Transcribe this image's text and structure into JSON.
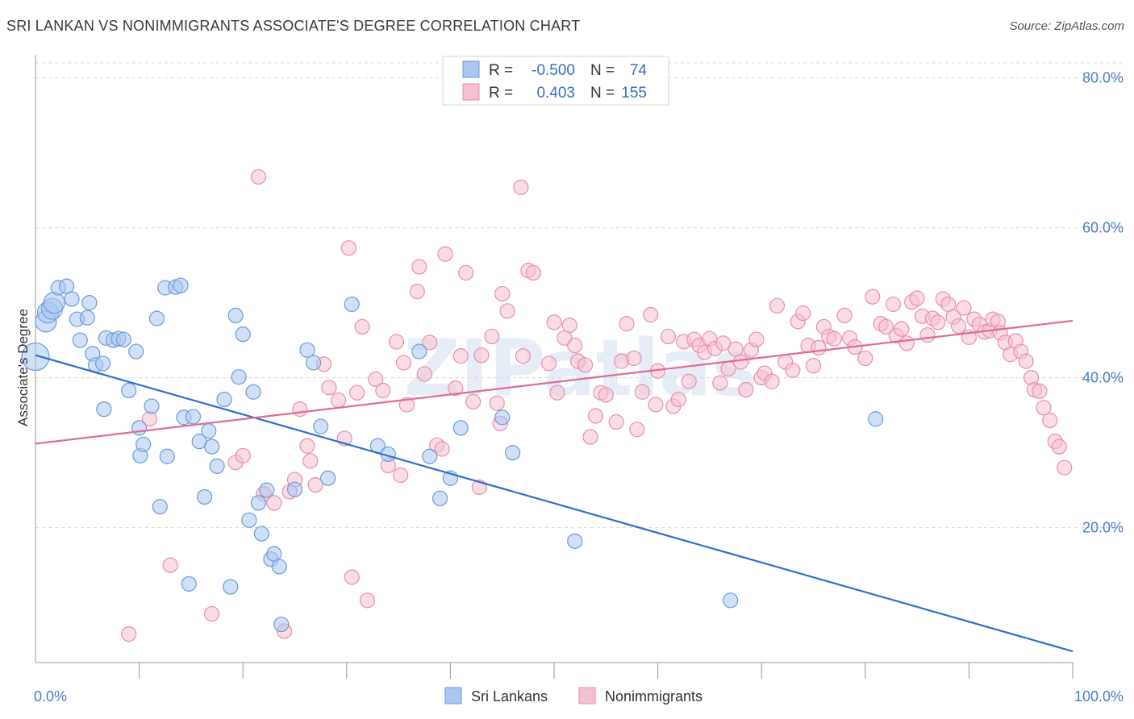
{
  "title": "SRI LANKAN VS NONIMMIGRANTS ASSOCIATE'S DEGREE CORRELATION CHART",
  "source": "Source: ZipAtlas.com",
  "watermark": "ZIPatlas",
  "colors": {
    "blue_fill": "#a9c7ef",
    "blue_stroke": "#6d9bdc",
    "blue_line": "#2f6fd0",
    "pink_fill": "#f6bfd2",
    "pink_stroke": "#e88fae",
    "pink_line": "#e06b97",
    "grid": "#d8d8d8",
    "axis_label": "#4a7cc4"
  },
  "legend": {
    "rows": [
      {
        "r_label": "R =",
        "r_value": "-0.500",
        "n_label": "N =",
        "n_value": "74",
        "series": "blue"
      },
      {
        "r_label": "R =",
        "r_value": "0.403",
        "n_label": "N =",
        "n_value": "155",
        "series": "pink"
      }
    ]
  },
  "bottom_legend": [
    {
      "label": "Sri Lankans",
      "series": "blue"
    },
    {
      "label": "Nonimmigrants",
      "series": "pink"
    }
  ],
  "chart_data": {
    "type": "scatter",
    "ylabel": "Associate's Degree",
    "xlim": [
      0,
      100
    ],
    "ylim": [
      2,
      82
    ],
    "y_ticks": [
      {
        "v": 20,
        "label": "20.0%"
      },
      {
        "v": 40,
        "label": "40.0%"
      },
      {
        "v": 60,
        "label": "60.0%"
      },
      {
        "v": 80,
        "label": "80.0%"
      }
    ],
    "x_ticks": [
      {
        "v": 0,
        "label": "0.0%"
      },
      {
        "v": 100,
        "label": "100.0%"
      }
    ],
    "grid": true,
    "legend_position": "top-center",
    "series": [
      {
        "name": "Sri Lankans",
        "color": "blue",
        "r": -0.5,
        "n": 74,
        "trend": {
          "x0": 0,
          "y0": 43,
          "x1": 100,
          "y1": 3.5
        },
        "points": [
          [
            0,
            42.8
          ],
          [
            1,
            47.5
          ],
          [
            1.2,
            48.7
          ],
          [
            1.6,
            49.2
          ],
          [
            1.8,
            50
          ],
          [
            2.2,
            52
          ],
          [
            3,
            52.2
          ],
          [
            3.5,
            50.5
          ],
          [
            4,
            47.8
          ],
          [
            4.3,
            45
          ],
          [
            5,
            48
          ],
          [
            5.2,
            50
          ],
          [
            5.5,
            43.2
          ],
          [
            5.8,
            41.7
          ],
          [
            6.5,
            41.9
          ],
          [
            6.6,
            35.8
          ],
          [
            6.8,
            45.3
          ],
          [
            7.5,
            45
          ],
          [
            8,
            45.2
          ],
          [
            8.5,
            45.1
          ],
          [
            9,
            38.3
          ],
          [
            9.7,
            43.5
          ],
          [
            10,
            33.3
          ],
          [
            10.1,
            29.6
          ],
          [
            10.4,
            31.1
          ],
          [
            11.2,
            36.2
          ],
          [
            11.7,
            47.9
          ],
          [
            12,
            22.8
          ],
          [
            12.5,
            52
          ],
          [
            12.7,
            29.5
          ],
          [
            13.5,
            52.1
          ],
          [
            14,
            52.3
          ],
          [
            14.3,
            34.7
          ],
          [
            14.8,
            12.5
          ],
          [
            15.2,
            34.8
          ],
          [
            15.8,
            31.5
          ],
          [
            16.3,
            24.1
          ],
          [
            16.7,
            32.9
          ],
          [
            17,
            30.8
          ],
          [
            17.5,
            28.2
          ],
          [
            18.2,
            37.1
          ],
          [
            18.8,
            12.1
          ],
          [
            19.3,
            48.3
          ],
          [
            19.6,
            40.1
          ],
          [
            20,
            45.8
          ],
          [
            20.6,
            21
          ],
          [
            21,
            38.1
          ],
          [
            21.5,
            23.3
          ],
          [
            21.8,
            19.2
          ],
          [
            22.3,
            25
          ],
          [
            22.7,
            15.8
          ],
          [
            23,
            16.5
          ],
          [
            23.5,
            14.8
          ],
          [
            23.7,
            7.1
          ],
          [
            25,
            25.1
          ],
          [
            26.2,
            43.7
          ],
          [
            26.8,
            42
          ],
          [
            27.5,
            33.5
          ],
          [
            28.2,
            26.6
          ],
          [
            30.5,
            49.8
          ],
          [
            33,
            30.9
          ],
          [
            34,
            29.8
          ],
          [
            37,
            43.5
          ],
          [
            38,
            29.5
          ],
          [
            39,
            23.9
          ],
          [
            40,
            26.6
          ],
          [
            41,
            33.3
          ],
          [
            45,
            34.7
          ],
          [
            46,
            30
          ],
          [
            52,
            18.2
          ],
          [
            67,
            10.3
          ],
          [
            81,
            34.5
          ]
        ]
      },
      {
        "name": "Nonimmigrants",
        "color": "pink",
        "r": 0.403,
        "n": 155,
        "trend": {
          "x0": 0,
          "y0": 31.2,
          "x1": 100,
          "y1": 47.6
        },
        "points": [
          [
            9,
            5.8
          ],
          [
            11,
            34.5
          ],
          [
            13,
            15
          ],
          [
            17,
            8.5
          ],
          [
            19.3,
            28.7
          ],
          [
            20,
            29.6
          ],
          [
            21.5,
            66.8
          ],
          [
            22,
            24.5
          ],
          [
            23,
            23.3
          ],
          [
            24,
            6.2
          ],
          [
            24.5,
            24.8
          ],
          [
            25,
            26.4
          ],
          [
            25.5,
            35.8
          ],
          [
            26.2,
            30.9
          ],
          [
            26.5,
            28.9
          ],
          [
            27,
            25.7
          ],
          [
            27.8,
            41.8
          ],
          [
            28.3,
            38.7
          ],
          [
            29.2,
            37
          ],
          [
            29.8,
            31.9
          ],
          [
            30.2,
            57.3
          ],
          [
            30.5,
            13.4
          ],
          [
            31,
            38
          ],
          [
            31.5,
            46.8
          ],
          [
            32,
            10.3
          ],
          [
            32.8,
            39.8
          ],
          [
            33.5,
            38.3
          ],
          [
            34,
            28.3
          ],
          [
            34.8,
            44.8
          ],
          [
            35.2,
            27
          ],
          [
            35.5,
            42
          ],
          [
            35.8,
            36.4
          ],
          [
            36.8,
            51.5
          ],
          [
            37,
            54.8
          ],
          [
            37.5,
            40.5
          ],
          [
            38,
            44.7
          ],
          [
            38.7,
            31
          ],
          [
            39.2,
            30.5
          ],
          [
            39.5,
            56.5
          ],
          [
            40.5,
            38.6
          ],
          [
            41,
            42.9
          ],
          [
            41.5,
            54
          ],
          [
            42.2,
            36.8
          ],
          [
            42.8,
            25.4
          ],
          [
            43,
            43
          ],
          [
            44,
            45.5
          ],
          [
            44.5,
            36.6
          ],
          [
            44.8,
            33.9
          ],
          [
            45,
            51.2
          ],
          [
            45.5,
            48.9
          ],
          [
            46.8,
            65.4
          ],
          [
            47,
            42.9
          ],
          [
            47.5,
            54.3
          ],
          [
            48,
            54
          ],
          [
            49.5,
            41.9
          ],
          [
            50,
            47.4
          ],
          [
            50.3,
            38
          ],
          [
            51,
            45.3
          ],
          [
            51.5,
            47
          ],
          [
            52,
            44.3
          ],
          [
            52.3,
            42.2
          ],
          [
            53,
            41.7
          ],
          [
            53.5,
            32.1
          ],
          [
            54,
            34.9
          ],
          [
            54.5,
            38
          ],
          [
            55,
            37.7
          ],
          [
            56,
            34.1
          ],
          [
            56.5,
            42.2
          ],
          [
            57,
            47.2
          ],
          [
            57.7,
            42.6
          ],
          [
            58,
            33.1
          ],
          [
            58.5,
            38.1
          ],
          [
            59.3,
            48.4
          ],
          [
            59.8,
            36.4
          ],
          [
            60,
            40.9
          ],
          [
            61,
            45.5
          ],
          [
            61.5,
            36.2
          ],
          [
            62,
            37.1
          ],
          [
            62.5,
            44.8
          ],
          [
            63,
            39.5
          ],
          [
            63.5,
            45.1
          ],
          [
            64,
            44.3
          ],
          [
            64.5,
            43.4
          ],
          [
            65,
            45.2
          ],
          [
            65.5,
            43.9
          ],
          [
            66,
            39.3
          ],
          [
            66.3,
            44.6
          ],
          [
            66.8,
            41.2
          ],
          [
            67.5,
            43.8
          ],
          [
            68,
            42.1
          ],
          [
            68.5,
            38.4
          ],
          [
            69,
            43.7
          ],
          [
            69.5,
            45.1
          ],
          [
            70,
            40
          ],
          [
            70.3,
            40.6
          ],
          [
            71,
            39.5
          ],
          [
            71.5,
            49.6
          ],
          [
            72.3,
            42.1
          ],
          [
            73,
            41
          ],
          [
            73.5,
            47.5
          ],
          [
            74,
            48.6
          ],
          [
            74.5,
            44.3
          ],
          [
            75,
            41.6
          ],
          [
            75.5,
            44
          ],
          [
            76,
            46.8
          ],
          [
            76.5,
            45.5
          ],
          [
            77,
            45.2
          ],
          [
            78,
            48.3
          ],
          [
            78.5,
            45.3
          ],
          [
            79,
            44.1
          ],
          [
            80,
            42.6
          ],
          [
            80.7,
            50.8
          ],
          [
            81.5,
            47.2
          ],
          [
            82,
            46.8
          ],
          [
            82.7,
            49.8
          ],
          [
            83,
            45.6
          ],
          [
            83.5,
            46.5
          ],
          [
            84,
            44.6
          ],
          [
            84.5,
            50.1
          ],
          [
            85,
            50.6
          ],
          [
            85.5,
            48.2
          ],
          [
            86,
            45.7
          ],
          [
            86.5,
            47.9
          ],
          [
            87,
            47.4
          ],
          [
            87.5,
            50.5
          ],
          [
            88,
            49.8
          ],
          [
            88.5,
            48.1
          ],
          [
            89,
            46.9
          ],
          [
            89.5,
            49.3
          ],
          [
            90,
            45.4
          ],
          [
            90.5,
            47.8
          ],
          [
            91,
            47.1
          ],
          [
            91.5,
            46.1
          ],
          [
            92,
            46.3
          ],
          [
            92.3,
            47.8
          ],
          [
            92.8,
            47.5
          ],
          [
            93,
            46
          ],
          [
            93.5,
            44.7
          ],
          [
            94,
            43.1
          ],
          [
            94.5,
            44.9
          ],
          [
            95,
            43.5
          ],
          [
            95.5,
            42.2
          ],
          [
            96,
            40
          ],
          [
            96.3,
            38.4
          ],
          [
            96.8,
            38.2
          ],
          [
            97.2,
            36
          ],
          [
            97.8,
            34.3
          ],
          [
            98.3,
            31.5
          ],
          [
            98.7,
            30.8
          ],
          [
            99.2,
            28
          ]
        ]
      }
    ]
  }
}
